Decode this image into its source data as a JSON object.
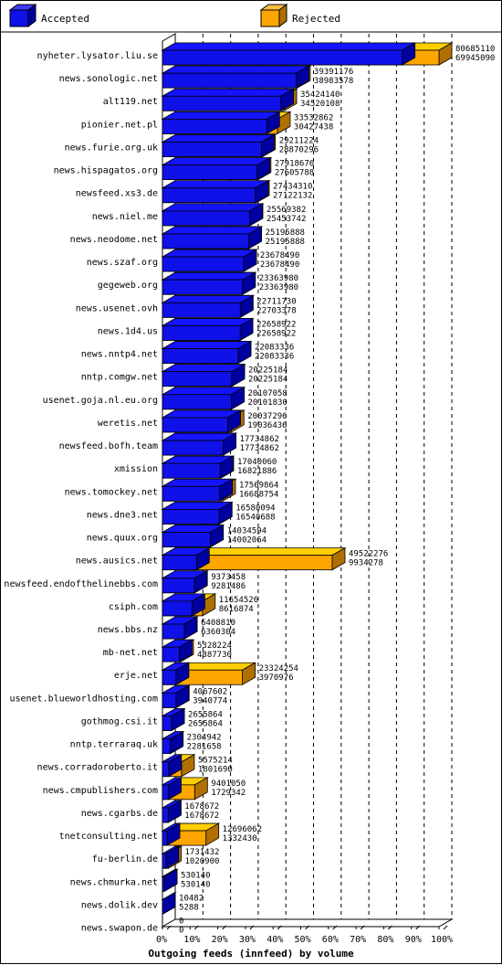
{
  "legend": {
    "accepted": "Accepted",
    "rejected": "Rejected"
  },
  "colors": {
    "accepted": "#1010e8",
    "accepted_dark": "#0000a0",
    "rejected": "#ffa500",
    "rejected_dark": "#b07000"
  },
  "chart_data": {
    "type": "bar",
    "orientation": "horizontal",
    "stacked": "overlay",
    "xlabel": "Outgoing feeds (innfeed) by volume",
    "x_ticks": [
      "0%",
      "10%",
      "20%",
      "30%",
      "40%",
      "50%",
      "60%",
      "70%",
      "80%",
      "90%",
      "100%"
    ],
    "legend_position": "top",
    "max_value": 80685110,
    "categories": [
      "nyheter.lysator.liu.se",
      "news.sonologic.net",
      "alt119.net",
      "pionier.net.pl",
      "news.furie.org.uk",
      "news.hispagatos.org",
      "newsfeed.xs3.de",
      "news.niel.me",
      "news.neodome.net",
      "news.szaf.org",
      "gegeweb.org",
      "news.usenet.ovh",
      "news.1d4.us",
      "news.nntp4.net",
      "nntp.comgw.net",
      "usenet.goja.nl.eu.org",
      "weretis.net",
      "newsfeed.bofh.team",
      "xmission",
      "news.tomockey.net",
      "news.dne3.net",
      "news.quux.org",
      "news.ausics.net",
      "newsfeed.endofthelinebbs.com",
      "csiph.com",
      "news.bbs.nz",
      "mb-net.net",
      "erje.net",
      "usenet.blueworldhosting.com",
      "gothmog.csi.it",
      "nntp.terraraq.uk",
      "news.corradoroberto.it",
      "news.cmpublishers.com",
      "news.cgarbs.de",
      "tnetconsulting.net",
      "fu-berlin.de",
      "news.chmurka.net",
      "news.dolik.dev",
      "news.swapon.de"
    ],
    "series": [
      {
        "name": "Rejected",
        "values": [
          80685110,
          39391176,
          35424140,
          33532862,
          29211224,
          27918676,
          27434310,
          25569382,
          25195888,
          23678490,
          23363980,
          22711730,
          22658922,
          22083336,
          20225184,
          20107058,
          20037296,
          17734862,
          17040060,
          17569864,
          16580094,
          14034594,
          49522276,
          9373458,
          11654526,
          6408810,
          5328224,
          23324254,
          4067602,
          2655864,
          2304942,
          5575214,
          9401050,
          1678672,
          12696062,
          1731432,
          530140,
          10482,
          0
        ]
      },
      {
        "name": "Accepted",
        "values": [
          69945090,
          38983578,
          34520108,
          30427438,
          28870296,
          27605788,
          27122132,
          25453742,
          25195888,
          23678490,
          23363980,
          22703378,
          22658922,
          22083336,
          20225184,
          20101830,
          19036436,
          17734862,
          16821886,
          16688754,
          16540688,
          14002064,
          9934278,
          9281486,
          8616874,
          6360304,
          4887730,
          3970976,
          3940774,
          2655864,
          2281658,
          1801690,
          1729342,
          1678672,
          1332430,
          1020900,
          530140,
          5288,
          0
        ]
      }
    ]
  }
}
